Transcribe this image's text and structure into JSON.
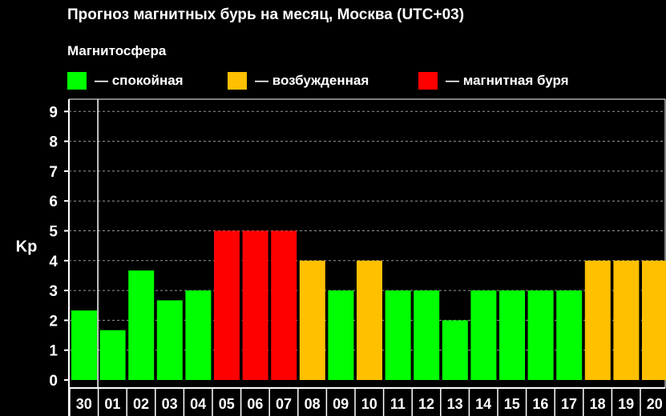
{
  "title": "Прогноз магнитных бурь на месяц, Москва (UTC+03)",
  "legend": {
    "title": "Магнитосфера",
    "items": [
      {
        "label": "— спокойная",
        "color": "#00ff00"
      },
      {
        "label": "— возбужденная",
        "color": "#ffc000"
      },
      {
        "label": "— магнитная буря",
        "color": "#ff0000"
      }
    ]
  },
  "chart_data": {
    "type": "bar",
    "ylabel": "Kp",
    "xlabel": "",
    "ylim": [
      0,
      9.5
    ],
    "yticks": [
      "0",
      "1",
      "2",
      "3",
      "4",
      "5",
      "6",
      "7",
      "8",
      "9"
    ],
    "grid": "horizontal dashed",
    "categories": [
      "30",
      "01",
      "02",
      "03",
      "04",
      "05",
      "06",
      "07",
      "08",
      "09",
      "10",
      "11",
      "12",
      "13",
      "14",
      "15",
      "16",
      "17",
      "18",
      "19",
      "20"
    ],
    "values": [
      2.33,
      1.67,
      3.67,
      2.67,
      3,
      5,
      5,
      5,
      4,
      3,
      4,
      3,
      3,
      2,
      3,
      3,
      3,
      3,
      4,
      4,
      4
    ],
    "levels": [
      "calm",
      "calm",
      "calm",
      "calm",
      "calm",
      "storm",
      "storm",
      "storm",
      "excited",
      "calm",
      "excited",
      "calm",
      "calm",
      "calm",
      "calm",
      "calm",
      "calm",
      "calm",
      "excited",
      "excited",
      "excited"
    ],
    "level_colors": {
      "calm": "#00ff00",
      "excited": "#ffc000",
      "storm": "#ff0000"
    },
    "separator_after_index": 0
  }
}
